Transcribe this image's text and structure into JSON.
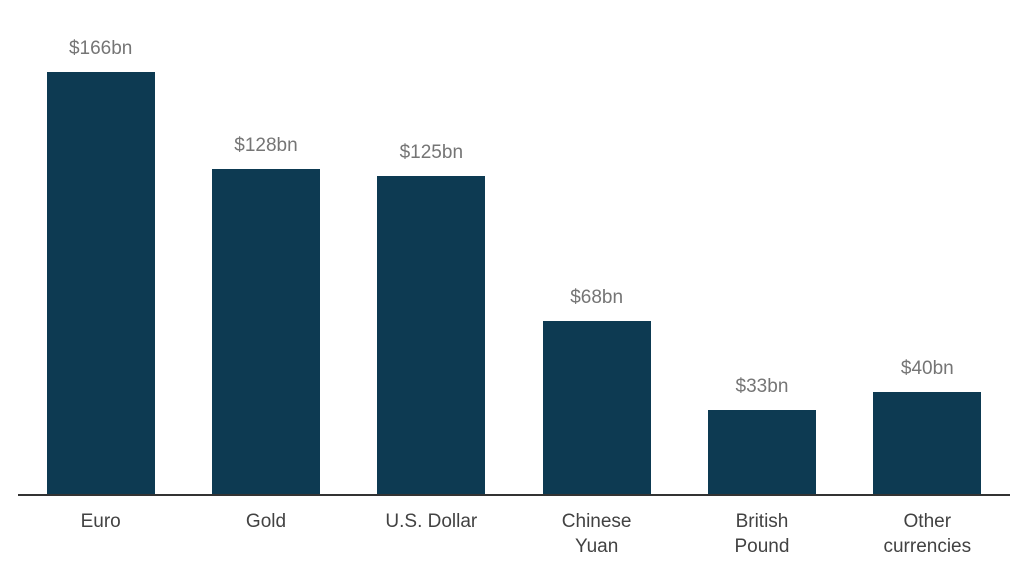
{
  "chart_data": {
    "type": "bar",
    "categories": [
      "Euro",
      "Gold",
      "U.S. Dollar",
      "Chinese Yuan",
      "British Pound",
      "Other currencies"
    ],
    "values": [
      166,
      128,
      125,
      68,
      33,
      40
    ],
    "value_labels": [
      "$166bn",
      "$128bn",
      "$125bn",
      "$68bn",
      "$33bn",
      "$40bn"
    ],
    "title": "",
    "xlabel": "",
    "ylabel": "",
    "ylim": [
      0,
      166
    ],
    "grid": false,
    "legend": "none"
  },
  "colors": {
    "bar": "#0d3a52",
    "value_label": "#757575",
    "category_label": "#424242",
    "axis_line": "#333333",
    "background": "#ffffff"
  }
}
